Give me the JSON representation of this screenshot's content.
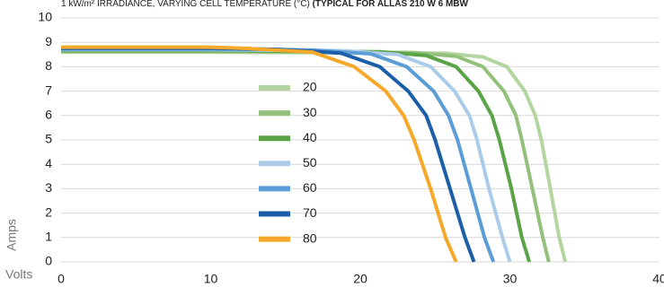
{
  "chart_data": {
    "type": "line",
    "title": "1 kW/m² IRRADIANCE, VARYING CELL TEMPERATURE (°C)",
    "title_emphasis": "(TYPICAL FOR ALLAS 210 W 6 MBW",
    "x_label": "Volts",
    "y_label": "Amps",
    "xlim": [
      0,
      40
    ],
    "xticks": [
      0,
      10,
      20,
      30,
      40
    ],
    "ylim": [
      0,
      10
    ],
    "yticks": [
      0,
      1,
      2,
      3,
      4,
      5,
      6,
      7,
      8,
      9,
      10
    ],
    "grid": true,
    "legend": "center",
    "series": [
      {
        "name": "20",
        "color": "#b3d59f",
        "x": [
          0,
          10,
          25.7,
          28.2,
          29.8,
          31.0,
          31.7,
          32.1,
          32.7,
          33.3,
          33.7
        ],
        "values": [
          8.6,
          8.6,
          8.55,
          8.4,
          8,
          7,
          6,
          5,
          3,
          1,
          0
        ]
      },
      {
        "name": "30",
        "color": "#93c07a",
        "x": [
          0,
          10,
          23.6,
          26.4,
          28.2,
          29.6,
          30.4,
          30.8,
          31.5,
          32.2,
          32.6
        ],
        "values": [
          8.63,
          8.63,
          8.58,
          8.43,
          8,
          7,
          6,
          5,
          3,
          1,
          0
        ]
      },
      {
        "name": "40",
        "color": "#5aa346",
        "x": [
          0,
          10,
          21.3,
          24.4,
          26.4,
          27.9,
          28.8,
          29.3,
          30.1,
          30.8,
          31.3
        ],
        "values": [
          8.66,
          8.66,
          8.61,
          8.46,
          8,
          7,
          6,
          5,
          3,
          1,
          0
        ]
      },
      {
        "name": "50",
        "color": "#aacce9",
        "x": [
          0,
          10,
          19.0,
          22.5,
          24.7,
          26.3,
          27.3,
          27.8,
          28.6,
          29.5,
          30.0
        ],
        "values": [
          8.7,
          8.7,
          8.65,
          8.5,
          8,
          7,
          6,
          5,
          3,
          1,
          0
        ]
      },
      {
        "name": "60",
        "color": "#5b9dd6",
        "x": [
          0,
          10,
          16.9,
          20.7,
          23.1,
          24.9,
          25.9,
          26.5,
          27.4,
          28.3,
          28.9
        ],
        "values": [
          8.73,
          8.73,
          8.68,
          8.53,
          8,
          7,
          6,
          5,
          3,
          1,
          0
        ]
      },
      {
        "name": "70",
        "color": "#1c5fa8",
        "x": [
          0,
          10,
          14.6,
          18.7,
          21.3,
          23.2,
          24.4,
          25.0,
          26.0,
          27.0,
          27.6
        ],
        "values": [
          8.76,
          8.76,
          8.71,
          8.56,
          8,
          7,
          6,
          5,
          3,
          1,
          0
        ]
      },
      {
        "name": "80",
        "color": "#f6a82a",
        "x": [
          0,
          10,
          12.4,
          16.8,
          19.6,
          21.7,
          22.9,
          23.6,
          24.7,
          25.7,
          26.4
        ],
        "values": [
          8.8,
          8.8,
          8.75,
          8.6,
          8,
          7,
          6,
          5,
          3,
          1,
          0
        ]
      }
    ]
  }
}
